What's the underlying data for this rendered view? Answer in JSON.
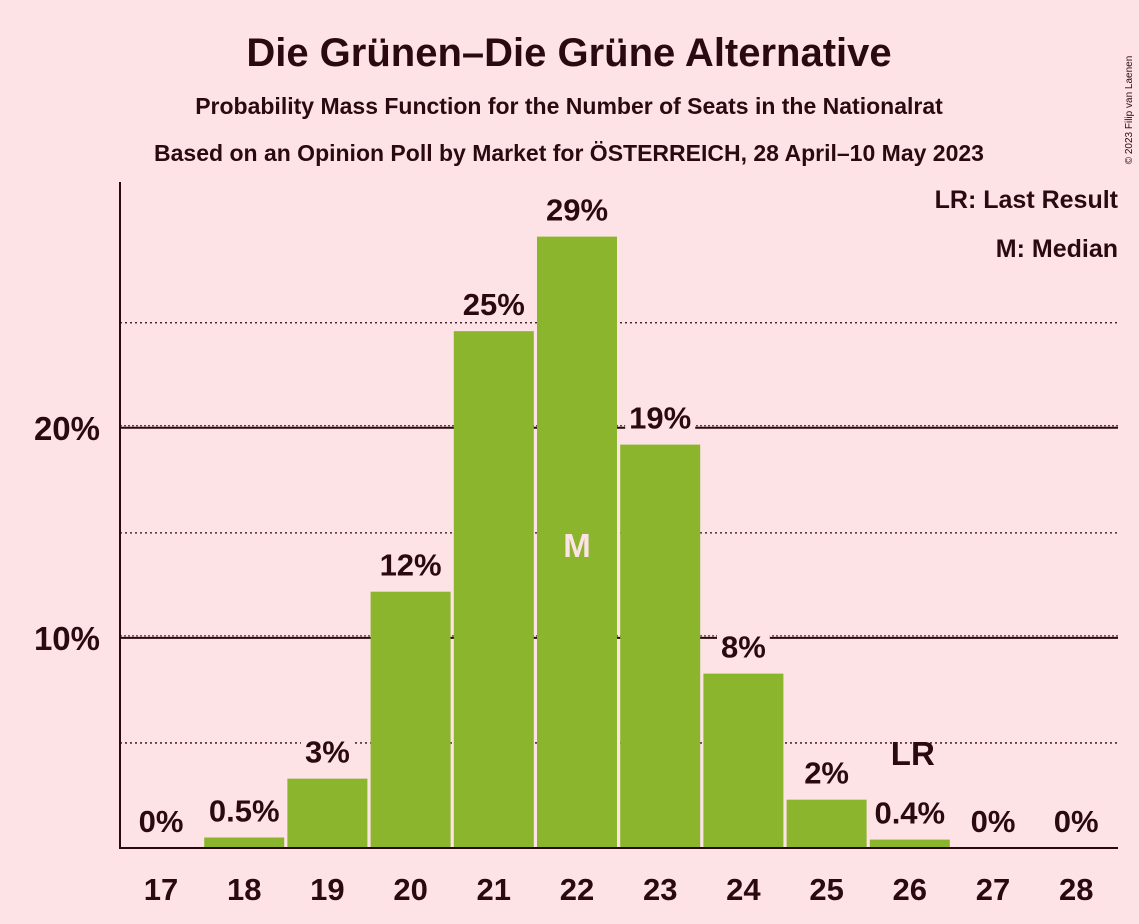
{
  "title": "Die Grünen–Die Grüne Alternative",
  "subtitle1": "Probability Mass Function for the Number of Seats in the Nationalrat",
  "subtitle2": "Based on an Opinion Poll by Market for ÖSTERREICH, 28 April–10 May 2023",
  "copyright": "© 2023 Filip van Laenen",
  "legend": {
    "lr": "LR: Last Result",
    "m": "M: Median"
  },
  "colors": {
    "background": "#FDE2E6",
    "bar": "#8AB52D",
    "text": "#2a0a10",
    "median_label": "#FDE2E6"
  },
  "chart_data": {
    "type": "bar",
    "categories": [
      "17",
      "18",
      "19",
      "20",
      "21",
      "22",
      "23",
      "24",
      "25",
      "26",
      "27",
      "28"
    ],
    "values": [
      0,
      0.5,
      3.3,
      12.2,
      24.6,
      29.1,
      19.2,
      8.3,
      2.3,
      0.4,
      0,
      0
    ],
    "data_labels": [
      "0%",
      "0.5%",
      "3%",
      "12%",
      "25%",
      "29%",
      "19%",
      "8%",
      "2%",
      "0.4%",
      "0%",
      "0%"
    ],
    "yticks": [
      {
        "value": 10,
        "label": "10%"
      },
      {
        "value": 20,
        "label": "20%"
      }
    ],
    "minor_gridlines": [
      5,
      15,
      25
    ],
    "ylim": [
      0,
      31.7
    ],
    "median_category": "22",
    "median_label": "M",
    "last_result_category": "26",
    "last_result_label": "LR",
    "grid": true,
    "legend_position": "top-right"
  }
}
